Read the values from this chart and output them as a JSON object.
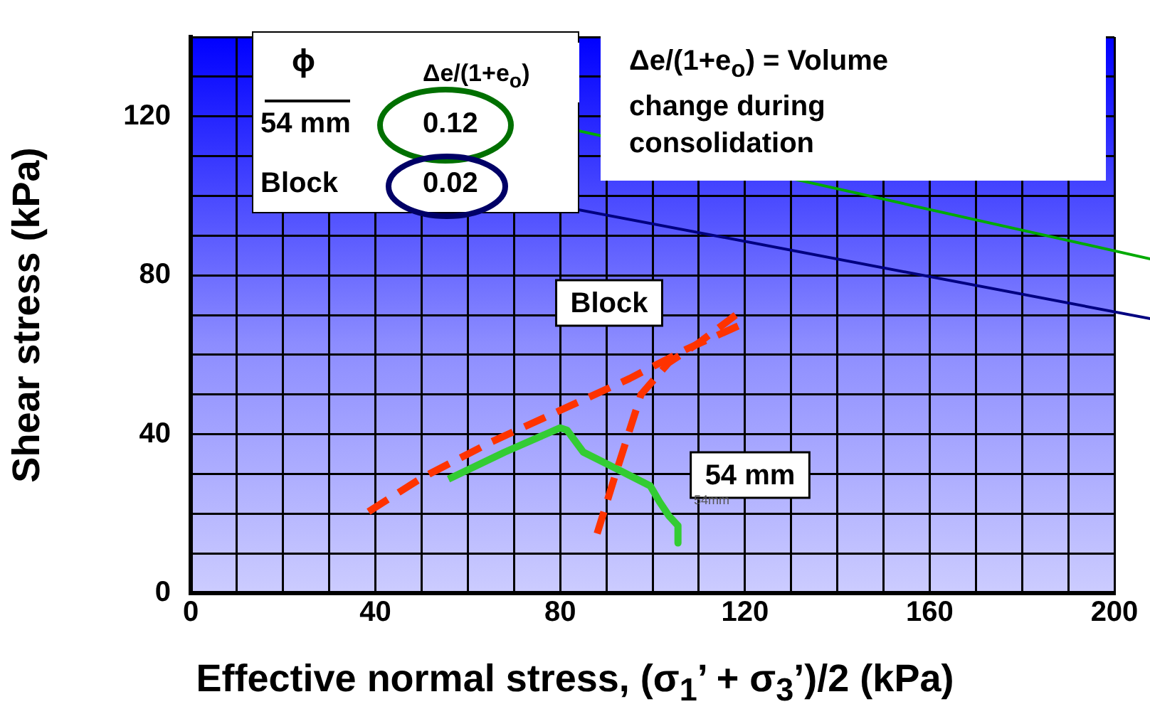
{
  "chart_data": {
    "type": "line",
    "xlabel": "Effective normal stress, (σ$_{1}$’ + σ$_{3}$’)/2  (kPa)",
    "ylabel": "Shear stress (kPa)",
    "xlim": [
      0,
      200
    ],
    "xticks": [
      0,
      {
        "value": 10,
        "label": null
      },
      {
        "value": 20,
        "label": null
      },
      {
        "value": 30,
        "label": null
      },
      40,
      {
        "value": 50,
        "label": null
      },
      {
        "value": 60,
        "label": null
      },
      {
        "value": 70,
        "label": null
      },
      80,
      {
        "value": 90,
        "label": null
      },
      {
        "value": 100,
        "label": null
      },
      {
        "value": 110,
        "label": null
      },
      120,
      {
        "value": 130,
        "label": null
      },
      {
        "value": 140,
        "label": null
      },
      {
        "value": 150,
        "label": null
      },
      160,
      {
        "value": 170,
        "label": null
      },
      {
        "value": 180,
        "label": null
      },
      {
        "value": 190,
        "label": null
      },
      200
    ],
    "ylim": [
      0,
      140
    ],
    "yticks": [
      0,
      {
        "value": 10,
        "label": null
      },
      {
        "value": 20,
        "label": null
      },
      {
        "value": 30,
        "label": null
      },
      40,
      {
        "value": 50,
        "label": null
      },
      {
        "value": 60,
        "label": null
      },
      {
        "value": 70,
        "label": null
      },
      80,
      {
        "value": 90,
        "label": null
      },
      {
        "value": 100,
        "label": null
      },
      {
        "value": 110,
        "label": null
      },
      120,
      {
        "value": 130,
        "label": null
      },
      {
        "value": 140,
        "label": null
      }
    ],
    "grid": true,
    "legend": false,
    "marker": "none",
    "series": [
      {
        "color": "#ff3300",
        "line_style": "dashed",
        "x": [
          38.5,
          50,
          65,
          80,
          95,
          107.5,
          120
        ],
        "values": [
          20.5,
          29,
          38,
          46,
          54,
          61.5,
          68
        ]
      },
      {
        "color": "#ff3300",
        "line_style": "dashed",
        "x": [
          88,
          92,
          97.5,
          103.5,
          110,
          118
        ],
        "values": [
          15,
          30,
          50,
          58,
          63,
          70
        ]
      },
      {
        "color": "#33cc33",
        "line_style": "solid",
        "x": [
          55.8,
          68,
          80,
          81.5,
          85,
          91,
          99.5,
          101.5,
          103.5,
          105.5,
          105.5
        ],
        "values": [
          28.7,
          35.5,
          41.6,
          41,
          35.5,
          32,
          27,
          23,
          19.5,
          17,
          12.6
        ]
      }
    ],
    "annotations": [
      "ϕ",
      "Δe/(1+e$_{o}$)",
      "54 mm",
      "0.12",
      "Block",
      "0.02",
      "Δe/(1+e$_{o}$) = Volume change during consolidation",
      "Block",
      "54 mm",
      "54mm"
    ]
  }
}
